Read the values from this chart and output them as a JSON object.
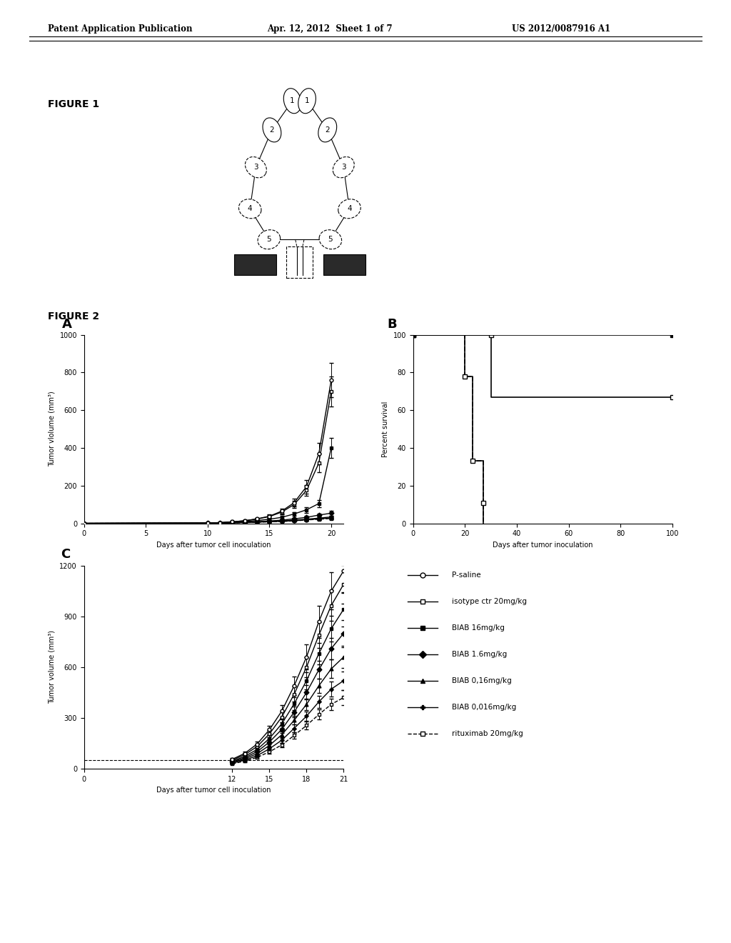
{
  "header_left": "Patent Application Publication",
  "header_center": "Apr. 12, 2012  Sheet 1 of 7",
  "header_right": "US 2012/0087916 A1",
  "figure1_label": "FIGURE 1",
  "figure2_label": "FIGURE 2",
  "panel_A_label": "A",
  "panel_B_label": "B",
  "panel_C_label": "C",
  "panelA": {
    "xlabel": "Days after tumor cell inoculation",
    "ylabel": "Tumor vlolume (mm³)",
    "ylim": [
      0,
      1000
    ],
    "xlim": [
      0,
      21
    ],
    "xticks": [
      0,
      5,
      10,
      15,
      20
    ],
    "yticks": [
      0,
      200,
      400,
      600,
      800,
      1000
    ]
  },
  "panelB": {
    "xlabel": "Days after tumor inoculation",
    "ylabel": "Percent survival",
    "ylim": [
      0,
      100
    ],
    "xlim": [
      0,
      100
    ],
    "xticks": [
      0,
      20,
      40,
      60,
      80,
      100
    ],
    "yticks": [
      0,
      20,
      40,
      60,
      80,
      100
    ]
  },
  "panelC": {
    "xlabel": "Days after tumor cell inoculation",
    "ylabel": "Tumor volume (mm³)",
    "ylim": [
      0,
      1200
    ],
    "xlim": [
      0,
      21
    ],
    "xticks": [
      0,
      12,
      15,
      18,
      21
    ],
    "yticks": [
      0,
      300,
      600,
      900,
      1200
    ]
  },
  "legend_entries": [
    {
      "label": "P-saline",
      "marker": "o",
      "filled": false,
      "ls": "-"
    },
    {
      "label": "isotype ctr 20mg/kg",
      "marker": "s",
      "filled": false,
      "ls": "-"
    },
    {
      "label": "BIAB 16mg/kg",
      "marker": "s",
      "filled": true,
      "ls": "-"
    },
    {
      "label": "BIAB 1.6mg/kg",
      "marker": "D",
      "filled": true,
      "ls": "-"
    },
    {
      "label": "BIAB 0,16mg/kg",
      "marker": "^",
      "filled": true,
      "ls": "-"
    },
    {
      "label": "BIAB 0,016mg/kg",
      "marker": "+",
      "filled": true,
      "ls": "-"
    },
    {
      "label": "rituximab 20mg/kg",
      "marker": "s",
      "filled": false,
      "ls": "--"
    }
  ]
}
